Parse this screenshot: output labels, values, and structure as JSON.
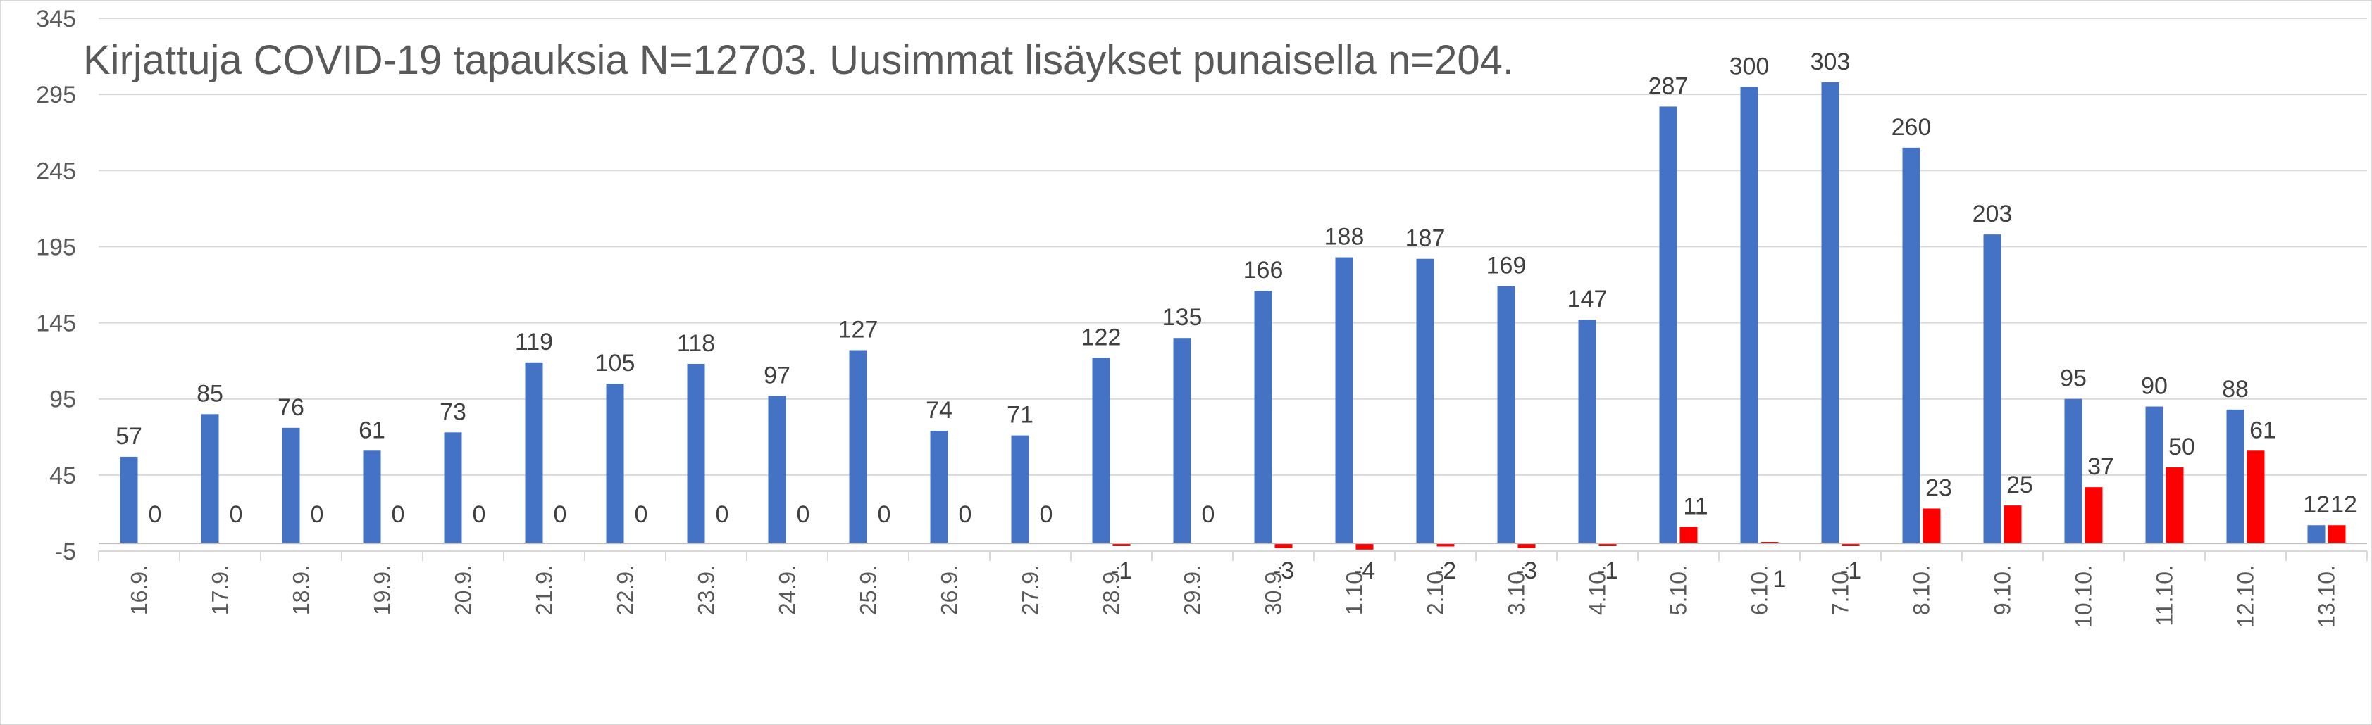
{
  "chart_data": {
    "type": "bar",
    "title": "Kirjattuja COVID-19 tapauksia N=12703. Uusimmat lisäykset punaisella n=204.",
    "xlabel": "",
    "ylabel": "",
    "ylim": [
      -5,
      345
    ],
    "yticks": [
      -5,
      45,
      95,
      145,
      195,
      245,
      295,
      345
    ],
    "grid": true,
    "legend": "none",
    "categories": [
      "16.9.",
      "17.9.",
      "18.9.",
      "19.9.",
      "20.9.",
      "21.9.",
      "22.9.",
      "23.9.",
      "24.9.",
      "25.9.",
      "26.9.",
      "27.9.",
      "28.9.",
      "29.9.",
      "30.9.",
      "1.10.",
      "2.10.",
      "3.10.",
      "4.10.",
      "5.10.",
      "6.10.",
      "7.10.",
      "8.10.",
      "9.10.",
      "10.10.",
      "11.10.",
      "12.10.",
      "13.10."
    ],
    "series": [
      {
        "color": "#4472C4",
        "values": [
          57,
          85,
          76,
          61,
          73,
          119,
          105,
          118,
          97,
          127,
          74,
          71,
          122,
          135,
          166,
          188,
          187,
          169,
          147,
          287,
          300,
          303,
          260,
          203,
          95,
          90,
          88,
          12
        ]
      },
      {
        "color": "#FF0000",
        "values": [
          0,
          0,
          0,
          0,
          0,
          0,
          0,
          0,
          0,
          0,
          0,
          0,
          -1,
          0,
          -3,
          -4,
          -2,
          -3,
          -1,
          11,
          1,
          -1,
          23,
          25,
          37,
          50,
          61,
          12
        ],
        "labels": [
          "0",
          "0",
          "0",
          "0",
          "0",
          "0",
          "0",
          "0",
          "0",
          "0",
          "0",
          "0",
          "-1",
          "0",
          "-3",
          "-4",
          "-2",
          "-3",
          "-1",
          "11",
          "1",
          "-1",
          "23",
          "25",
          "37",
          "50",
          "61",
          "12"
        ]
      }
    ]
  }
}
